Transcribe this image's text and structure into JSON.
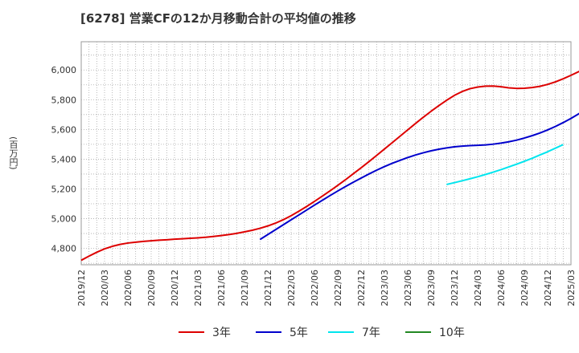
{
  "chart_data": {
    "type": "line",
    "title": "[6278]  営業CFの12か月移動合計の平均値の推移",
    "xlabel": "",
    "ylabel": "(百万円)",
    "ylim": [
      4690,
      6190
    ],
    "yticks": [
      4800,
      5000,
      5200,
      5400,
      5600,
      5800,
      6000
    ],
    "ytick_labels": [
      "4,800",
      "5,000",
      "5,200",
      "5,400",
      "5,600",
      "5,800",
      "6,000"
    ],
    "x_range": [
      "2019-12",
      "2025-03"
    ],
    "xtick_labels": [
      "2019/12",
      "2020/03",
      "2020/06",
      "2020/09",
      "2020/12",
      "2021/03",
      "2021/06",
      "2021/09",
      "2021/12",
      "2022/03",
      "2022/06",
      "2022/09",
      "2022/12",
      "2023/03",
      "2023/06",
      "2023/09",
      "2023/12",
      "2024/03",
      "2024/06",
      "2024/09",
      "2024/12",
      "2025/03"
    ],
    "grid": true,
    "legend_position": "bottom",
    "series": [
      {
        "name": "3年",
        "color": "#dd0000",
        "start": "2019-12",
        "values": [
          4720,
          4748,
          4774,
          4797,
          4814,
          4827,
          4836,
          4842,
          4847,
          4851,
          4855,
          4858,
          4862,
          4865,
          4868,
          4871,
          4875,
          4880,
          4886,
          4893,
          4901,
          4911,
          4922,
          4935,
          4951,
          4970,
          4993,
          5020,
          5050,
          5082,
          5116,
          5151,
          5187,
          5224,
          5262,
          5302,
          5342,
          5383,
          5425,
          5468,
          5511,
          5554,
          5597,
          5640,
          5682,
          5722,
          5760,
          5796,
          5829,
          5855,
          5874,
          5885,
          5891,
          5892,
          5887,
          5880,
          5876,
          5877,
          5882,
          5890,
          5903,
          5920,
          5941,
          5964,
          5989,
          6015,
          6043,
          6071,
          6101,
          6132
        ]
      },
      {
        "name": "5年",
        "color": "#0000cc",
        "start": "2021-11",
        "values": [
          4860,
          4893,
          4926,
          4959,
          4992,
          5025,
          5058,
          5091,
          5123,
          5155,
          5186,
          5216,
          5245,
          5273,
          5300,
          5326,
          5350,
          5372,
          5392,
          5411,
          5428,
          5443,
          5456,
          5467,
          5476,
          5483,
          5488,
          5491,
          5493,
          5496,
          5501,
          5508,
          5517,
          5528,
          5542,
          5558,
          5576,
          5597,
          5620,
          5646,
          5674,
          5705,
          5738
        ]
      },
      {
        "name": "7年",
        "color": "#00e5ee",
        "start": "2023-11",
        "values": [
          5230,
          5242,
          5255,
          5268,
          5282,
          5297,
          5313,
          5330,
          5348,
          5366,
          5386,
          5406,
          5428,
          5450,
          5474,
          5498
        ]
      },
      {
        "name": "10年",
        "color": "#228822",
        "start": "2024-12",
        "values": []
      }
    ]
  }
}
